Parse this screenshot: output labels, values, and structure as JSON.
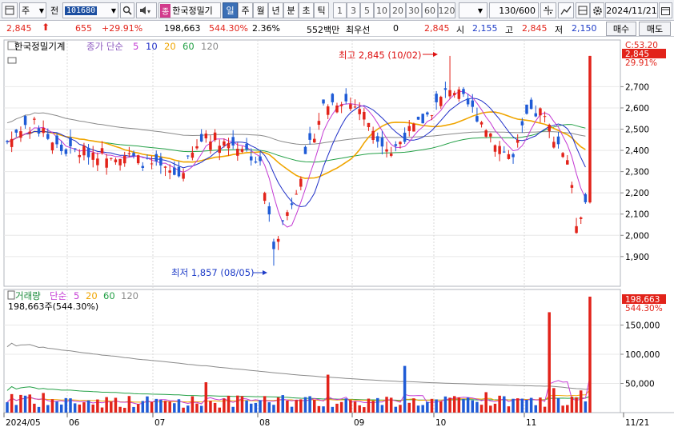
{
  "toolbar": {
    "type_value": "주",
    "prefix_label": "전",
    "code_value": "101680",
    "stock_badge": "종",
    "stock_name": "한국정밀기",
    "period_tabs": [
      "일",
      "주",
      "월",
      "년",
      "분",
      "초",
      "틱"
    ],
    "period_active": "일",
    "intervals": [
      "1",
      "3",
      "5",
      "10",
      "20",
      "30",
      "60",
      "120"
    ],
    "count_value": "130",
    "count_total": "/600",
    "date_value": "2024/11/21"
  },
  "quote": {
    "price": "2,845",
    "change": "655",
    "change_pct": "+29.91%",
    "volume": "198,663",
    "volume_ratio": "544.30%",
    "turnover": "2.36%",
    "amount": "552백만",
    "pref_label": "최우선",
    "pref_value": "0",
    "ask": "2,845",
    "open_label": "시",
    "open": "2,155",
    "high_label": "고",
    "high": "2,845",
    "low_label": "저",
    "low": "2,150",
    "buy_label": "매수",
    "sell_label": "매도"
  },
  "price_panel": {
    "title": "한국정밀기계",
    "ma_label": "종가 단순",
    "ma_periods": [
      "5",
      "10",
      "20",
      "60",
      "120"
    ],
    "ma_colors": [
      "#c43bd4",
      "#1f2fc8",
      "#f0a500",
      "#23a046",
      "#8a8a8a"
    ],
    "high_note": "최고 2,845 (10/02)",
    "low_note": "최저 1,857 (08/05)",
    "tag_prev": "C:53.20",
    "tag_price": "2,845",
    "tag_pct": "29.91%",
    "y_ticks": [
      "2,700",
      "2,600",
      "2,500",
      "2,400",
      "2,300",
      "2,200",
      "2,100",
      "2,000",
      "1,900"
    ],
    "y_values": [
      2700,
      2600,
      2500,
      2400,
      2300,
      2200,
      2100,
      2000,
      1900
    ]
  },
  "volume_panel": {
    "title": "거래량",
    "ma_label": "단순",
    "ma_periods": [
      "5",
      "20",
      "60",
      "120"
    ],
    "value_text": "198,663주(544.30%)",
    "tag_value": "198,663",
    "tag_pct": "544.30%",
    "y_ticks": [
      "150,000",
      "100,000",
      "50,000"
    ],
    "y_values": [
      150000,
      100000,
      50000
    ]
  },
  "x_axis": {
    "labels": [
      "2024/05",
      "06",
      "07",
      "08",
      "09",
      "10",
      "11",
      "11/21"
    ]
  },
  "colors": {
    "up": "#e2231a",
    "down": "#1f5bd6",
    "accent": "#3a6fb6"
  }
}
